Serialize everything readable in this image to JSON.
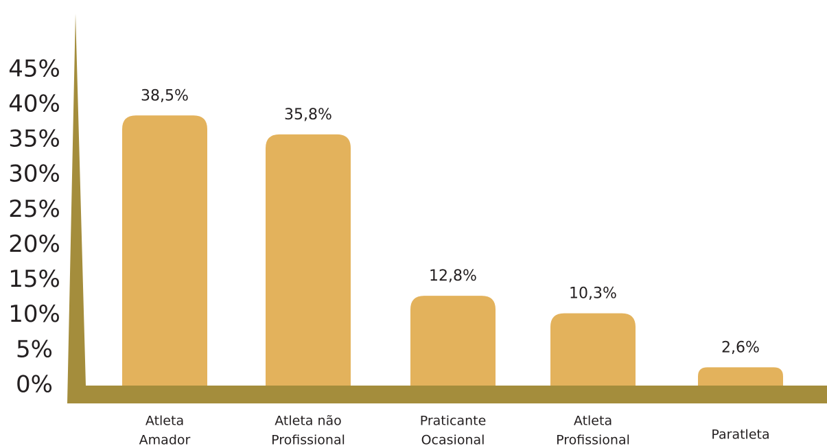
{
  "chart_data": {
    "type": "bar",
    "categories": [
      [
        "Atleta",
        "Amador"
      ],
      [
        "Atleta não",
        "Profissional"
      ],
      [
        "Praticante",
        "Ocasional"
      ],
      [
        "Atleta",
        "Profissional"
      ],
      [
        "Paratleta"
      ]
    ],
    "values": [
      38.5,
      35.8,
      12.8,
      10.3,
      2.6
    ],
    "value_labels": [
      "38,5%",
      "35,8%",
      "12,8%",
      "10,3%",
      "2,6%"
    ],
    "color": "#e3b25c",
    "axis_color": "#a48d3c",
    "ylim": [
      0,
      53
    ],
    "yticks": [
      {
        "value": 0,
        "label": "0%"
      },
      {
        "value": 5,
        "label": "5%"
      },
      {
        "value": 10,
        "label": "10%"
      },
      {
        "value": 15,
        "label": "15%"
      },
      {
        "value": 20,
        "label": "20%"
      },
      {
        "value": 25,
        "label": "25%"
      },
      {
        "value": 30,
        "label": "30%"
      },
      {
        "value": 35,
        "label": "35%"
      },
      {
        "value": 40,
        "label": "40%"
      },
      {
        "value": 45,
        "label": "45%"
      }
    ]
  }
}
